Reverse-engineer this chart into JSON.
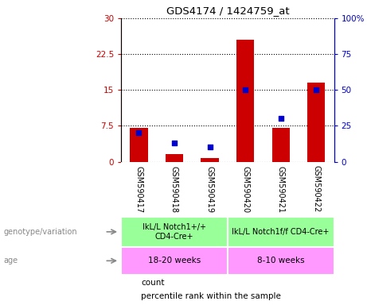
{
  "title": "GDS4174 / 1424759_at",
  "samples": [
    "GSM590417",
    "GSM590418",
    "GSM590419",
    "GSM590420",
    "GSM590421",
    "GSM590422"
  ],
  "counts": [
    7.0,
    1.5,
    0.8,
    25.5,
    7.0,
    16.5
  ],
  "percentiles": [
    20,
    13,
    10,
    50,
    30,
    50
  ],
  "ylim_left": [
    0,
    30
  ],
  "ylim_right": [
    0,
    100
  ],
  "yticks_left": [
    0,
    7.5,
    15,
    22.5,
    30
  ],
  "yticks_right": [
    0,
    25,
    50,
    75,
    100
  ],
  "yticklabels_left": [
    "0",
    "7.5",
    "15",
    "22.5",
    "30"
  ],
  "yticklabels_right": [
    "0",
    "25",
    "50",
    "75",
    "100%"
  ],
  "bar_color": "#cc0000",
  "dot_color": "#0000cc",
  "group1_genotype": "IkL/L Notch1+/+\nCD4-Cre+",
  "group2_genotype": "IkL/L Notch1f/f CD4-Cre+",
  "group1_age": "18-20 weeks",
  "group2_age": "8-10 weeks",
  "genotype_color": "#99ff99",
  "age_color": "#ff99ff",
  "tick_area_color": "#c8c8c8",
  "legend_count_label": "count",
  "legend_percentile_label": "percentile rank within the sample",
  "left_label_genotype": "genotype/variation",
  "left_label_age": "age",
  "bg_color": "#ffffff"
}
